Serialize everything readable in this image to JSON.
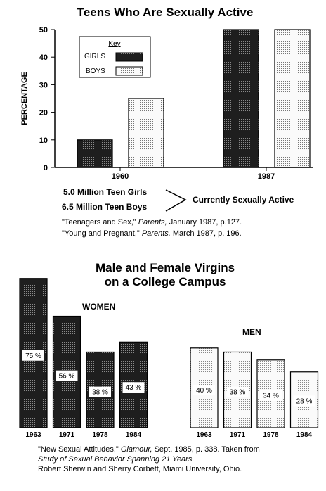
{
  "top_chart": {
    "title": "Teens Who Are Sexually Active",
    "ylabel": "PERCENTAGE",
    "yticks": [
      "0",
      "10",
      "20",
      "30",
      "40",
      "50"
    ],
    "key_title": "Key",
    "girls_label": "GIRLS",
    "boys_label": "BOYS",
    "notes": {
      "line1": "5.0 Million Teen Girls",
      "line2": "6.5 Million Teen Boys",
      "brace_text": "Currently Sexually Active"
    },
    "source1_a": "\"Teenagers and Sex,\"",
    "source1_b": "Parents,",
    "source1_c": "January 1987, p.127.",
    "source2_a": "\"Young and Pregnant,\"",
    "source2_b": "Parents,",
    "source2_c": "March 1987, p. 196."
  },
  "bottom_chart": {
    "title_line1": "Male and Female Virgins",
    "title_line2": "on a College Campus",
    "women_label": "WOMEN",
    "men_label": "MEN",
    "source_a": "\"New Sexual Attitudes,\"",
    "source_b": "Glamour,",
    "source_c": "Sept. 1985, p. 338.  Taken from",
    "source_d": "Study of Sexual Behavior Spanning 21 Years.",
    "source_e": "Robert Sherwin and Sherry Corbett, Miami University, Ohio."
  },
  "chart_data": [
    {
      "type": "bar",
      "title": "Teens Who Are Sexually Active",
      "xlabel": "",
      "ylabel": "PERCENTAGE",
      "categories": [
        "1960",
        "1987"
      ],
      "series": [
        {
          "name": "GIRLS",
          "values": [
            10,
            50
          ]
        },
        {
          "name": "BOYS",
          "values": [
            25,
            50
          ]
        }
      ],
      "ylim": [
        0,
        50
      ],
      "legend": "top-left",
      "colors": {
        "girls": "#2a2a2a",
        "boys": "#f2f2f2"
      }
    },
    {
      "type": "bar",
      "title": "Male and Female Virgins on a College Campus",
      "xlabel": "",
      "ylabel": "",
      "categories": [
        "1963",
        "1971",
        "1978",
        "1984"
      ],
      "series": [
        {
          "name": "WOMEN",
          "values": [
            75,
            56,
            38,
            43
          ],
          "labels": [
            "75 %",
            "56 %",
            "38 %",
            "43 %"
          ]
        },
        {
          "name": "MEN",
          "values": [
            40,
            38,
            34,
            28
          ],
          "labels": [
            "40 %",
            "38 %",
            "34 %",
            "28 %"
          ]
        }
      ],
      "colors": {
        "women": "#2a2a2a",
        "men": "#f2f2f2"
      }
    }
  ]
}
